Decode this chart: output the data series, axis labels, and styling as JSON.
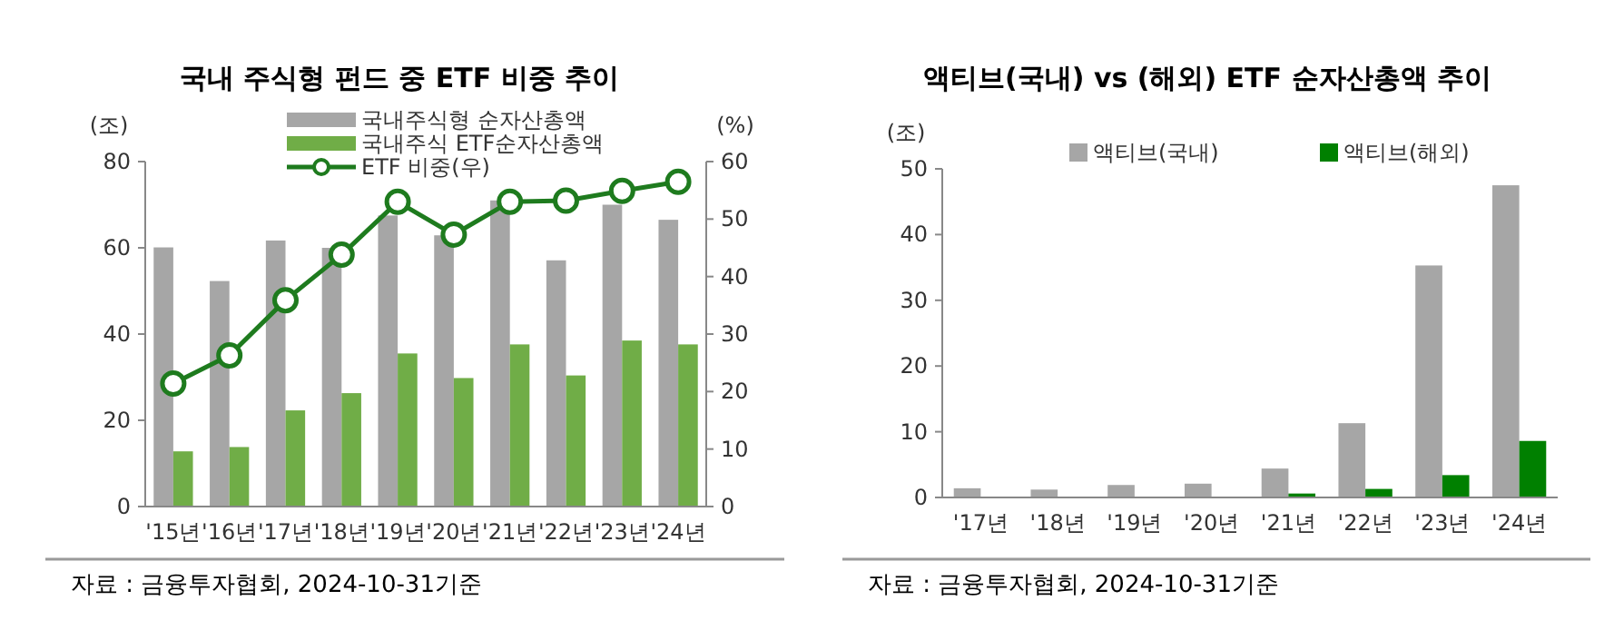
{
  "chart_data": [
    {
      "type": "bar",
      "title": "국내 주식형 펀드 중 ETF 비중 추이",
      "ylabel": "(조)",
      "y2label": "(%)",
      "categories": [
        "'15년",
        "'16년",
        "'17년",
        "'18년",
        "'19년",
        "'20년",
        "'21년",
        "'22년",
        "'23년",
        "'24년"
      ],
      "series": [
        {
          "name": "국내주식형 순자산총액",
          "color": "#a6a6a6",
          "values": [
            60.1,
            52.3,
            61.7,
            60,
            67.5,
            62.9,
            71,
            57.1,
            70,
            66.5
          ]
        },
        {
          "name": "국내주식 ETF순자산총액",
          "color": "#70ad47",
          "values": [
            12.8,
            13.8,
            22.3,
            26.3,
            35.5,
            29.8,
            37.6,
            30.4,
            38.5,
            37.6
          ]
        },
        {
          "name": "ETF 비중(우)",
          "type": "line",
          "axis": "y2",
          "color": "#1e7b1e",
          "values": [
            21.4,
            26.3,
            35.9,
            43.8,
            53,
            47.3,
            53,
            53.2,
            54.9,
            56.5
          ]
        }
      ],
      "ylim": [
        0,
        80
      ],
      "yticks": [
        0,
        20,
        40,
        60,
        80
      ],
      "y2lim": [
        0,
        60
      ],
      "y2ticks": [
        0,
        10,
        20,
        30,
        40,
        50,
        60
      ],
      "marker": "circle",
      "legend": "top",
      "grid": false,
      "annotations": [
        "자료 : 금융투자협회, 2024-10-31기준"
      ]
    },
    {
      "type": "bar",
      "title": "액티브(국내) vs (해외) ETF 순자산총액 추이",
      "ylabel": "(조)",
      "categories": [
        "'17년",
        "'18년",
        "'19년",
        "'20년",
        "'21년",
        "'22년",
        "'23년",
        "'24년"
      ],
      "series": [
        {
          "name": "액티브(국내)",
          "color": "#a6a6a6",
          "values": [
            1.4,
            1.2,
            1.9,
            2.1,
            4.4,
            11.3,
            35.3,
            47.5
          ]
        },
        {
          "name": "액티브(해외)",
          "color": "#008000",
          "values": [
            null,
            null,
            null,
            null,
            0.6,
            1.3,
            3.4,
            8.6
          ]
        }
      ],
      "ylim": [
        0,
        50
      ],
      "yticks": [
        0,
        10,
        20,
        30,
        40,
        50
      ],
      "legend": "top",
      "grid": false,
      "annotations": [
        "자료 : 금융투자협회, 2024-10-31기준"
      ]
    }
  ]
}
